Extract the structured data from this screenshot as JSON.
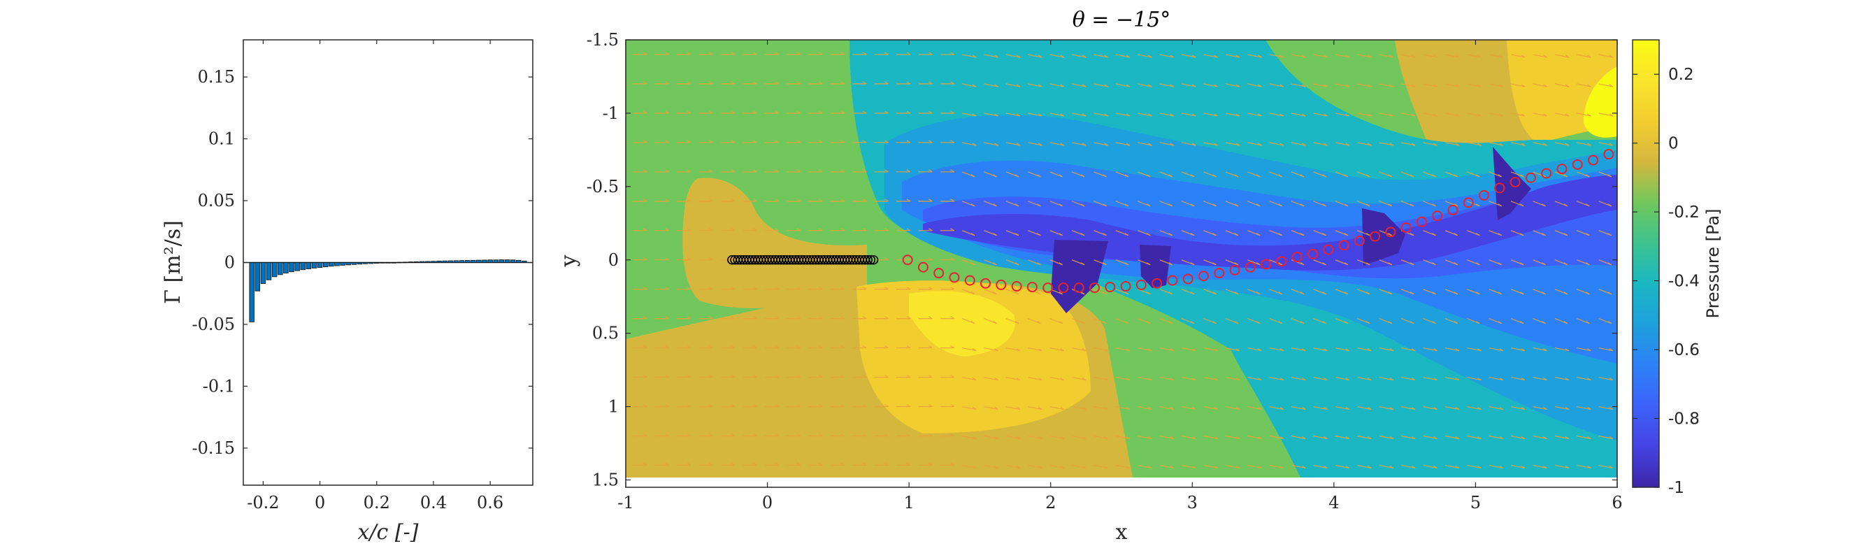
{
  "chart_data": [
    {
      "type": "bar",
      "panel": "left",
      "xlabel": "x/c [-]",
      "ylabel": "Γ [m²/s]",
      "xlim": [
        -0.27,
        0.75
      ],
      "ylim": [
        -0.18,
        0.18
      ],
      "xticks": [
        "-0.2",
        "0",
        "0.2",
        "0.4",
        "0.6"
      ],
      "xtick_values": [
        -0.2,
        0,
        0.2,
        0.4,
        0.6
      ],
      "yticks": [
        "0.15",
        "0.1",
        "0.05",
        "0",
        "-0.05",
        "-0.1",
        "-0.15"
      ],
      "ytick_values": [
        0.15,
        0.1,
        0.05,
        0,
        -0.05,
        -0.1,
        -0.15
      ],
      "bar_color": "#0072BD",
      "x": [
        -0.24,
        -0.22,
        -0.2,
        -0.18,
        -0.16,
        -0.14,
        -0.12,
        -0.1,
        -0.08,
        -0.06,
        -0.04,
        -0.02,
        0.0,
        0.02,
        0.04,
        0.06,
        0.08,
        0.1,
        0.12,
        0.14,
        0.16,
        0.18,
        0.2,
        0.22,
        0.24,
        0.26,
        0.28,
        0.3,
        0.32,
        0.34,
        0.36,
        0.38,
        0.4,
        0.42,
        0.44,
        0.46,
        0.48,
        0.5,
        0.52,
        0.54,
        0.56,
        0.58,
        0.6,
        0.62,
        0.64,
        0.66,
        0.68,
        0.7,
        0.72
      ],
      "values": [
        -0.048,
        -0.023,
        -0.017,
        -0.014,
        -0.0115,
        -0.0098,
        -0.0085,
        -0.0075,
        -0.0066,
        -0.0058,
        -0.0051,
        -0.0045,
        -0.004,
        -0.0035,
        -0.003,
        -0.0026,
        -0.0022,
        -0.0019,
        -0.0016,
        -0.0013,
        -0.001,
        -0.0008,
        -0.0006,
        -0.0004,
        -0.0002,
        0.0,
        0.0002,
        0.0003,
        0.0005,
        0.0006,
        0.0008,
        0.0009,
        0.001,
        0.0012,
        0.0013,
        0.0014,
        0.0015,
        0.0016,
        0.0017,
        0.0018,
        0.0019,
        0.002,
        0.0021,
        0.0021,
        0.0022,
        0.0022,
        0.0021,
        0.0018,
        0.0012
      ]
    },
    {
      "type": "heatmap",
      "panel": "right",
      "title": "θ = −15°",
      "xlabel": "x",
      "ylabel": "y",
      "xlim": [
        -1,
        6
      ],
      "ylim": [
        -1.5,
        1.55
      ],
      "y_reversed": true,
      "xticks": [
        "-1",
        "0",
        "1",
        "2",
        "3",
        "4",
        "5",
        "6"
      ],
      "xtick_values": [
        -1,
        0,
        1,
        2,
        3,
        4,
        5,
        6
      ],
      "yticks": [
        "-1.5",
        "-1",
        "-0.5",
        "0",
        "0.5",
        "1",
        "1.5"
      ],
      "ytick_values": [
        -1.5,
        -1,
        -0.5,
        0,
        0.5,
        1,
        1.5
      ],
      "colorbar": {
        "label": "Pressure [Pa]",
        "range": [
          -1,
          0.3
        ],
        "ticks": [
          "0.2",
          "0",
          "-0.2",
          "-0.4",
          "-0.6",
          "-0.8",
          "-1"
        ],
        "tick_values": [
          0.2,
          0,
          -0.2,
          -0.4,
          -0.6,
          -0.8,
          -1
        ],
        "colormap": [
          "#3E26A8",
          "#4543E3",
          "#3D62FA",
          "#2D81F6",
          "#1EA0DD",
          "#1AB7C3",
          "#3DC28F",
          "#71C75C",
          "#D5B73E",
          "#F2CD30",
          "#F9E52C",
          "#F9FA14"
        ]
      },
      "plate": {
        "x_start": -0.25,
        "x_end": 0.75,
        "y": 0.0,
        "marker_count": 50,
        "color": "#000000"
      },
      "wake_vortices": {
        "color": "#E8212F",
        "x": [
          0.99,
          1.1,
          1.21,
          1.32,
          1.43,
          1.54,
          1.65,
          1.76,
          1.87,
          1.98,
          2.09,
          2.2,
          2.31,
          2.42,
          2.53,
          2.64,
          2.75,
          2.86,
          2.97,
          3.08,
          3.19,
          3.3,
          3.41,
          3.52,
          3.63,
          3.74,
          3.85,
          3.96,
          4.07,
          4.18,
          4.29,
          4.4,
          4.51,
          4.62,
          4.73,
          4.84,
          4.95,
          5.06,
          5.17,
          5.28,
          5.39,
          5.5,
          5.61,
          5.72,
          5.83,
          5.94
        ],
        "y": [
          0.0,
          0.05,
          0.09,
          0.12,
          0.14,
          0.16,
          0.17,
          0.18,
          0.185,
          0.19,
          0.19,
          0.19,
          0.19,
          0.185,
          0.18,
          0.17,
          0.16,
          0.14,
          0.13,
          0.11,
          0.09,
          0.07,
          0.05,
          0.03,
          0.01,
          -0.02,
          -0.04,
          -0.07,
          -0.1,
          -0.13,
          -0.16,
          -0.19,
          -0.22,
          -0.26,
          -0.3,
          -0.34,
          -0.39,
          -0.44,
          -0.49,
          -0.53,
          -0.56,
          -0.59,
          -0.62,
          -0.65,
          -0.68,
          -0.72
        ]
      },
      "vector_color": "#E8A23A"
    }
  ]
}
